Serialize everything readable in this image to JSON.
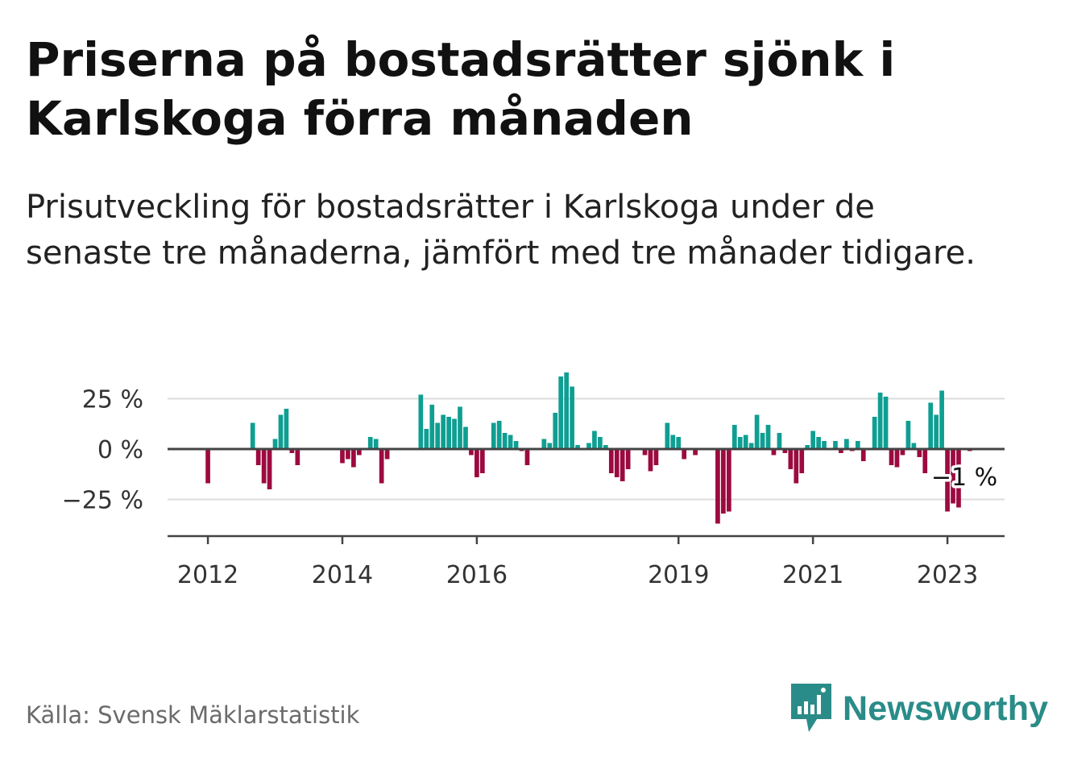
{
  "title": "Priserna på bostadsrätter sjönk i Karlskoga förra månaden",
  "subtitle": "Prisutveckling för bostadsrätter i Karlskoga under de senaste tre månaderna, jämfört med tre månader tidigare.",
  "source": "Källa: Svensk Mäklarstatistik",
  "brand": {
    "name": "Newsworthy",
    "icon": "bar-chart-speech-bubble-icon",
    "color": "#2a8c88"
  },
  "colors": {
    "positive": "#0f9e92",
    "negative": "#9c0a3f",
    "grid": "#dcdcdc",
    "axis": "#444444"
  },
  "chart_data": {
    "type": "bar",
    "title": "",
    "xlabel": "",
    "ylabel": "",
    "ylim": [
      -41,
      42
    ],
    "grid": true,
    "y_ticks": [
      {
        "value": 25,
        "label": "25 %"
      },
      {
        "value": 0,
        "label": "0 %"
      },
      {
        "value": -25,
        "label": "−25 %"
      }
    ],
    "x_ticks": [
      {
        "value": 2012,
        "label": "2012"
      },
      {
        "value": 2014,
        "label": "2014"
      },
      {
        "value": 2016,
        "label": "2016"
      },
      {
        "value": 2019,
        "label": "2019"
      },
      {
        "value": 2021,
        "label": "2021"
      },
      {
        "value": 2023,
        "label": "2023"
      }
    ],
    "x_range": [
      2011.4,
      2023.85
    ],
    "last_value_label": "−1 %",
    "series": [
      {
        "values": [
          [
            "2012-01",
            -17
          ],
          [
            "2012-09",
            13
          ],
          [
            "2012-10",
            -8
          ],
          [
            "2012-11",
            -17
          ],
          [
            "2012-12",
            -20
          ],
          [
            "2013-01",
            5
          ],
          [
            "2013-02",
            17
          ],
          [
            "2013-03",
            20
          ],
          [
            "2013-04",
            -2
          ],
          [
            "2013-05",
            -8
          ],
          [
            "2014-01",
            -7
          ],
          [
            "2014-02",
            -5
          ],
          [
            "2014-03",
            -9
          ],
          [
            "2014-04",
            -3
          ],
          [
            "2014-06",
            6
          ],
          [
            "2014-07",
            5
          ],
          [
            "2014-08",
            -17
          ],
          [
            "2014-09",
            -5
          ],
          [
            "2015-03",
            27
          ],
          [
            "2015-04",
            10
          ],
          [
            "2015-05",
            22
          ],
          [
            "2015-06",
            13
          ],
          [
            "2015-07",
            17
          ],
          [
            "2015-08",
            16
          ],
          [
            "2015-09",
            15
          ],
          [
            "2015-10",
            21
          ],
          [
            "2015-11",
            11
          ],
          [
            "2015-12",
            -3
          ],
          [
            "2016-01",
            -14
          ],
          [
            "2016-02",
            -12
          ],
          [
            "2016-03",
            0
          ],
          [
            "2016-04",
            13
          ],
          [
            "2016-05",
            14
          ],
          [
            "2016-06",
            8
          ],
          [
            "2016-07",
            7
          ],
          [
            "2016-08",
            4
          ],
          [
            "2016-09",
            -1
          ],
          [
            "2016-10",
            -8
          ],
          [
            "2017-01",
            5
          ],
          [
            "2017-02",
            3
          ],
          [
            "2017-03",
            18
          ],
          [
            "2017-04",
            36
          ],
          [
            "2017-05",
            38
          ],
          [
            "2017-06",
            31
          ],
          [
            "2017-07",
            2
          ],
          [
            "2017-09",
            3
          ],
          [
            "2017-10",
            9
          ],
          [
            "2017-11",
            6
          ],
          [
            "2017-12",
            2
          ],
          [
            "2018-01",
            -12
          ],
          [
            "2018-02",
            -14
          ],
          [
            "2018-03",
            -16
          ],
          [
            "2018-04",
            -10
          ],
          [
            "2018-07",
            -3
          ],
          [
            "2018-08",
            -11
          ],
          [
            "2018-09",
            -8
          ],
          [
            "2018-11",
            13
          ],
          [
            "2018-12",
            7
          ],
          [
            "2019-01",
            6
          ],
          [
            "2019-02",
            -5
          ],
          [
            "2019-04",
            -3
          ],
          [
            "2019-08",
            -37
          ],
          [
            "2019-09",
            -32
          ],
          [
            "2019-10",
            -31
          ],
          [
            "2019-11",
            12
          ],
          [
            "2019-12",
            6
          ],
          [
            "2020-01",
            7
          ],
          [
            "2020-02",
            3
          ],
          [
            "2020-03",
            17
          ],
          [
            "2020-04",
            8
          ],
          [
            "2020-05",
            12
          ],
          [
            "2020-06",
            -3
          ],
          [
            "2020-07",
            8
          ],
          [
            "2020-08",
            -2
          ],
          [
            "2020-09",
            -10
          ],
          [
            "2020-10",
            -17
          ],
          [
            "2020-11",
            -12
          ],
          [
            "2020-12",
            2
          ],
          [
            "2021-01",
            9
          ],
          [
            "2021-02",
            6
          ],
          [
            "2021-03",
            4
          ],
          [
            "2021-05",
            4
          ],
          [
            "2021-06",
            -2
          ],
          [
            "2021-07",
            5
          ],
          [
            "2021-08",
            -1
          ],
          [
            "2021-09",
            4
          ],
          [
            "2021-10",
            -6
          ],
          [
            "2021-12",
            16
          ],
          [
            "2022-01",
            28
          ],
          [
            "2022-02",
            26
          ],
          [
            "2022-03",
            -8
          ],
          [
            "2022-04",
            -9
          ],
          [
            "2022-05",
            -3
          ],
          [
            "2022-06",
            14
          ],
          [
            "2022-07",
            3
          ],
          [
            "2022-08",
            -4
          ],
          [
            "2022-09",
            -12
          ],
          [
            "2022-10",
            23
          ],
          [
            "2022-11",
            17
          ],
          [
            "2022-12",
            29
          ],
          [
            "2023-01",
            -31
          ],
          [
            "2023-02",
            -27
          ],
          [
            "2023-03",
            -29
          ],
          [
            "2023-05",
            -1
          ]
        ]
      }
    ]
  }
}
